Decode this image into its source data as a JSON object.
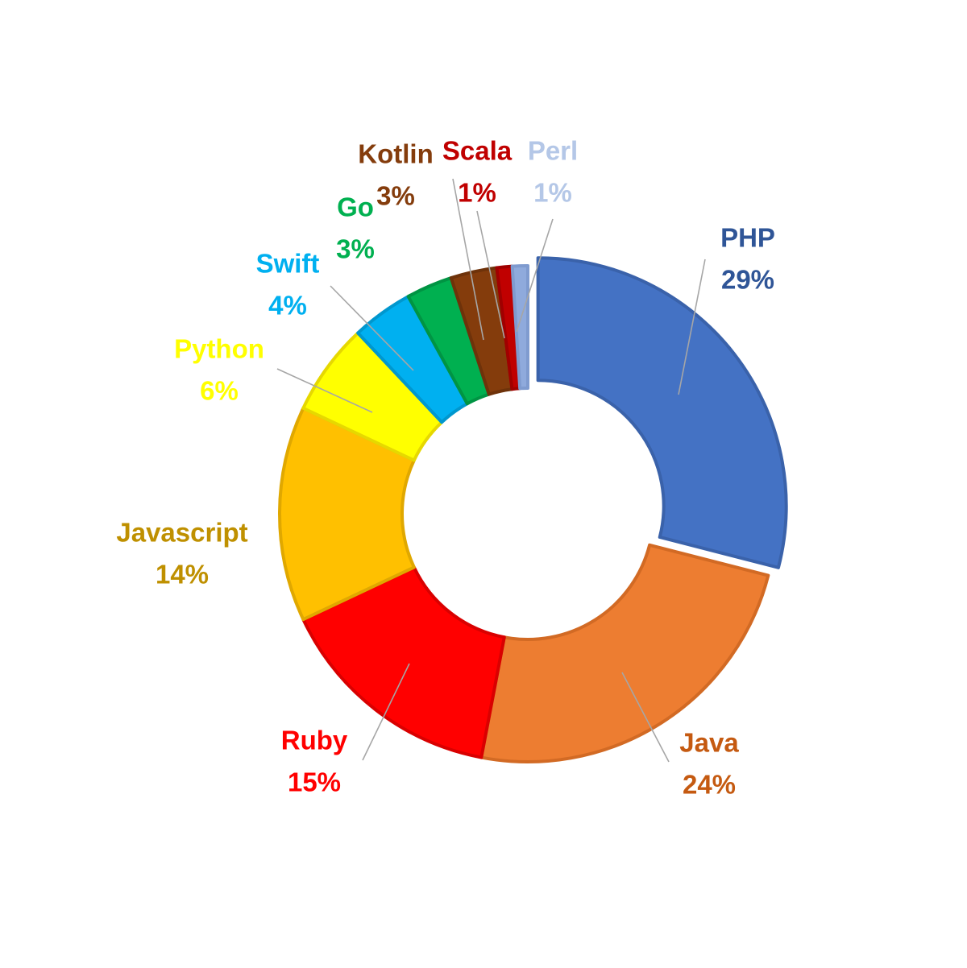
{
  "chart_data": {
    "type": "pie",
    "variant": "doughnut",
    "title": "",
    "exploded": [
      "PHP"
    ],
    "slices": [
      {
        "label": "PHP",
        "value": 29,
        "value_label": "29%",
        "color": "#4472C4",
        "edge": "#3A62AA",
        "text_color": "#2F5597"
      },
      {
        "label": "Java",
        "value": 24,
        "value_label": "24%",
        "color": "#ED7D31",
        "edge": "#D26A24",
        "text_color": "#C55A11"
      },
      {
        "label": "Ruby",
        "value": 15,
        "value_label": "15%",
        "color": "#FF0000",
        "edge": "#D90000",
        "text_color": "#FF0000"
      },
      {
        "label": "Javascript",
        "value": 14,
        "value_label": "14%",
        "color": "#FFC000",
        "edge": "#E0A800",
        "text_color": "#BF9000"
      },
      {
        "label": "Python",
        "value": 6,
        "value_label": "6%",
        "color": "#FFFF00",
        "edge": "#E6D800",
        "text_color": "#FFFF00"
      },
      {
        "label": "Swift",
        "value": 4,
        "value_label": "4%",
        "color": "#00B0F0",
        "edge": "#0097CE",
        "text_color": "#00B0F0"
      },
      {
        "label": "Go",
        "value": 3,
        "value_label": "3%",
        "color": "#00B050",
        "edge": "#009443",
        "text_color": "#00B050"
      },
      {
        "label": "Kotlin",
        "value": 3,
        "value_label": "3%",
        "color": "#843C0C",
        "edge": "#6E320A",
        "text_color": "#843C0C"
      },
      {
        "label": "Scala",
        "value": 1,
        "value_label": "1%",
        "color": "#C00000",
        "edge": "#A00000",
        "text_color": "#C00000"
      },
      {
        "label": "Perl",
        "value": 1,
        "value_label": "1%",
        "color": "#8FAADC",
        "edge": "#7F9BCF",
        "text_color": "#B4C7E7"
      }
    ]
  }
}
